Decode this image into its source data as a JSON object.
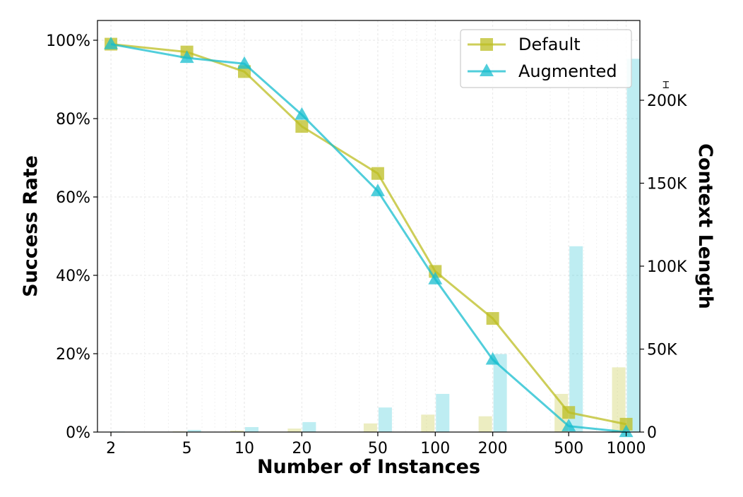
{
  "chart_data": {
    "type": "line",
    "xlabel": "Number of Instances",
    "ylabel": "Success Rate",
    "y2label": "Context Length",
    "x_scale": "log",
    "x": [
      2,
      5,
      10,
      20,
      50,
      100,
      200,
      500,
      1000
    ],
    "x_tick_labels": [
      "2",
      "5",
      "10",
      "20",
      "50",
      "100",
      "200",
      "500",
      "1000"
    ],
    "ylim": [
      0,
      100
    ],
    "y_tick_labels": [
      "0%",
      "20%",
      "40%",
      "60%",
      "80%",
      "100%"
    ],
    "y2lim": [
      0,
      250000
    ],
    "y2_tick_labels": [
      "0",
      "50K",
      "100K",
      "150K",
      "200K"
    ],
    "grid": true,
    "legend": "top-right",
    "series": [
      {
        "name": "Default",
        "color": "#bcbd22",
        "marker": "square",
        "values": [
          99,
          97,
          92,
          78,
          66,
          41,
          29,
          5,
          2
        ],
        "context_length": [
          200,
          400,
          900,
          2100,
          5200,
          10500,
          9500,
          23000,
          39000
        ]
      },
      {
        "name": "Augmented",
        "color": "#17becf",
        "marker": "triangle",
        "values": [
          99,
          95.5,
          94,
          81,
          61.5,
          39,
          18.5,
          1.5,
          0
        ],
        "context_length": [
          300,
          1300,
          3000,
          6000,
          14800,
          23000,
          47000,
          112000,
          225000
        ]
      }
    ]
  }
}
